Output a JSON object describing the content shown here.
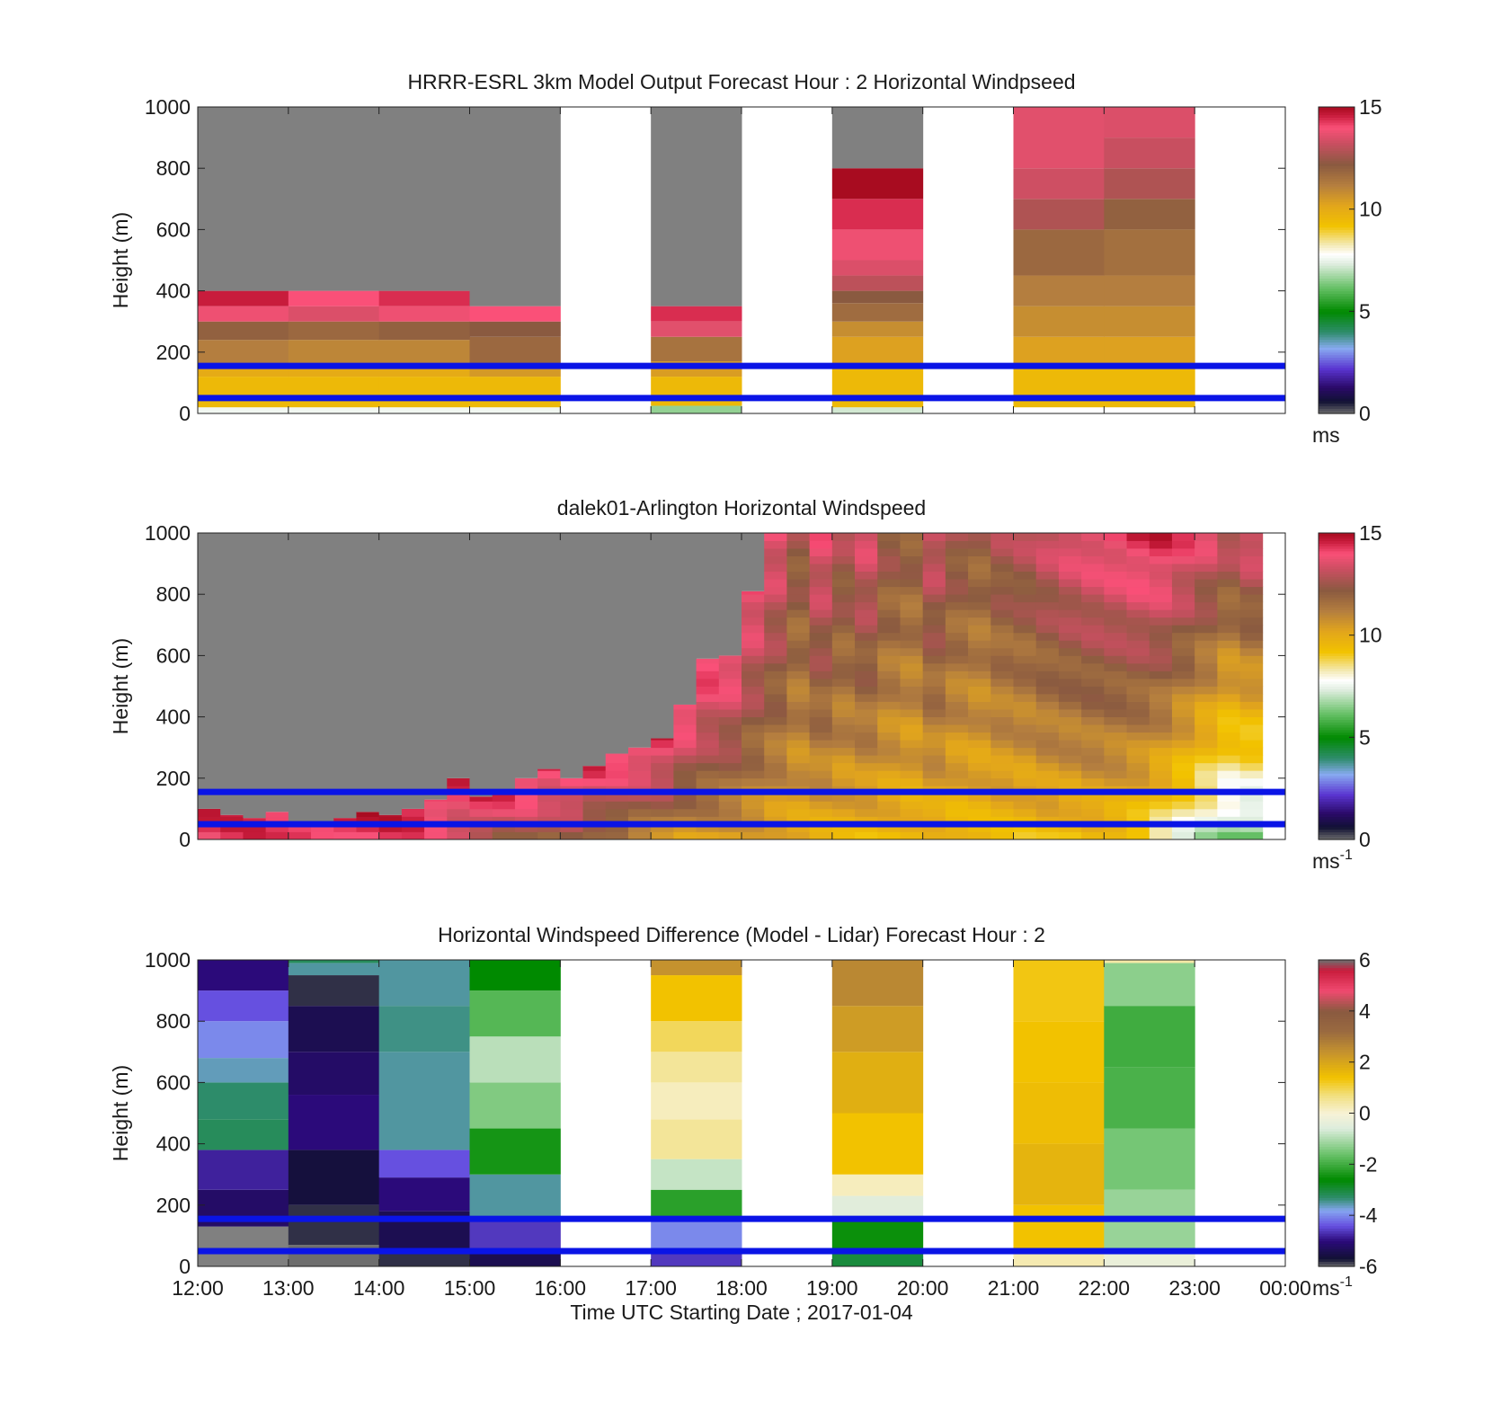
{
  "figure": {
    "xlabel": "Time UTC  Starting Date ; 2017-01-04",
    "x_ticks": [
      "12:00",
      "13:00",
      "14:00",
      "15:00",
      "16:00",
      "17:00",
      "18:00",
      "19:00",
      "20:00",
      "21:00",
      "22:00",
      "23:00",
      "00:00"
    ]
  },
  "chart_data": [
    {
      "type": "heatmap",
      "title": "HRRR-ESRL 3km Model Output   Forecast Hour : 2 Horizontal Windpseed",
      "ylabel": "Height (m)",
      "xlim": [
        "12:00",
        "00:00"
      ],
      "ylim": [
        0,
        1000
      ],
      "y_ticks": [
        "0",
        "200",
        "400",
        "600",
        "800",
        "1000"
      ],
      "colorbar": {
        "min": 0,
        "max": 15,
        "ticks": [
          "0",
          "5",
          "10",
          "15"
        ],
        "unit": "ms",
        "unit_sup": ""
      },
      "reference_lines_m": [
        50,
        155
      ],
      "columns": [
        {
          "hour_start": "12:00",
          "profile": [
            [
              0,
              20,
              7.6
            ],
            [
              20,
              50,
              9.5
            ],
            [
              50,
              120,
              9.5
            ],
            [
              120,
              160,
              10
            ],
            [
              160,
              240,
              11.2
            ],
            [
              240,
              300,
              12
            ],
            [
              300,
              350,
              13.8
            ],
            [
              350,
              400,
              14.6
            ],
            [
              400,
              1000,
              null
            ]
          ]
        },
        {
          "hour_start": "13:00",
          "profile": [
            [
              0,
              20,
              7.6
            ],
            [
              20,
              50,
              9.5
            ],
            [
              50,
              120,
              9.5
            ],
            [
              120,
              160,
              10
            ],
            [
              160,
              240,
              11
            ],
            [
              240,
              300,
              11.8
            ],
            [
              300,
              350,
              13.5
            ],
            [
              350,
              400,
              14
            ],
            [
              400,
              1000,
              null
            ]
          ]
        },
        {
          "hour_start": "14:00",
          "profile": [
            [
              0,
              20,
              7.6
            ],
            [
              20,
              50,
              9.5
            ],
            [
              50,
              120,
              9.5
            ],
            [
              120,
              160,
              10
            ],
            [
              160,
              240,
              11
            ],
            [
              240,
              300,
              12
            ],
            [
              300,
              350,
              13.8
            ],
            [
              350,
              400,
              14.4
            ],
            [
              400,
              1000,
              null
            ]
          ]
        },
        {
          "hour_start": "15:00",
          "profile": [
            [
              0,
              20,
              7.6
            ],
            [
              20,
              50,
              9.5
            ],
            [
              50,
              120,
              9.5
            ],
            [
              120,
              160,
              10.5
            ],
            [
              160,
              250,
              11.8
            ],
            [
              250,
              300,
              12.2
            ],
            [
              300,
              350,
              14
            ],
            [
              350,
              1000,
              null
            ]
          ]
        },
        {
          "hour_start": "17:00",
          "profile": [
            [
              0,
              25,
              6.6
            ],
            [
              25,
              50,
              9.5
            ],
            [
              50,
              120,
              9.5
            ],
            [
              120,
              170,
              10.4
            ],
            [
              170,
              250,
              11.5
            ],
            [
              250,
              300,
              13.6
            ],
            [
              300,
              350,
              14.4
            ],
            [
              350,
              1000,
              null
            ]
          ]
        },
        {
          "hour_start": "19:00",
          "profile": [
            [
              0,
              20,
              7.2
            ],
            [
              20,
              50,
              9.5
            ],
            [
              50,
              150,
              9.5
            ],
            [
              150,
              250,
              10.3
            ],
            [
              250,
              300,
              10.8
            ],
            [
              300,
              360,
              11.7
            ],
            [
              360,
              400,
              12.2
            ],
            [
              400,
              450,
              13
            ],
            [
              450,
              500,
              13.5
            ],
            [
              500,
              600,
              13.8
            ],
            [
              600,
              700,
              14.4
            ],
            [
              700,
              800,
              15
            ],
            [
              800,
              1000,
              null
            ]
          ]
        },
        {
          "hour_start": "21:00",
          "profile": [
            [
              0,
              20,
              7.8
            ],
            [
              20,
              50,
              9.5
            ],
            [
              50,
              150,
              9.5
            ],
            [
              150,
              250,
              10.3
            ],
            [
              250,
              350,
              10.8
            ],
            [
              350,
              450,
              11.2
            ],
            [
              450,
              600,
              11.8
            ],
            [
              600,
              700,
              12.8
            ],
            [
              700,
              800,
              13.3
            ],
            [
              800,
              1000,
              13.6
            ]
          ]
        },
        {
          "hour_start": "22:00",
          "profile": [
            [
              0,
              20,
              7.8
            ],
            [
              20,
              50,
              9.5
            ],
            [
              50,
              150,
              9.5
            ],
            [
              150,
              250,
              10.3
            ],
            [
              250,
              350,
              10.8
            ],
            [
              350,
              450,
              11.2
            ],
            [
              450,
              600,
              11.6
            ],
            [
              600,
              700,
              12
            ],
            [
              700,
              800,
              12.8
            ],
            [
              800,
              900,
              13.2
            ],
            [
              900,
              1000,
              13.5
            ]
          ]
        }
      ]
    },
    {
      "type": "heatmap",
      "title": "dalek01-Arlington  Horizontal Windspeed",
      "ylabel": "Height (m)",
      "xlim": [
        "12:00",
        "00:00"
      ],
      "ylim": [
        0,
        1000
      ],
      "y_ticks": [
        "0",
        "200",
        "400",
        "600",
        "800",
        "1000"
      ],
      "colorbar": {
        "min": 0,
        "max": 15,
        "ticks": [
          "0",
          "5",
          "10",
          "15"
        ],
        "unit": "ms",
        "unit_sup": "-1"
      },
      "reference_lines_m": [
        50,
        155
      ],
      "columns_per_hour": 4,
      "cell_height_m": 25,
      "top_height_m": [
        100,
        80,
        70,
        90,
        60,
        60,
        70,
        90,
        80,
        100,
        130,
        200,
        140,
        150,
        200,
        230,
        200,
        240,
        280,
        300,
        330,
        440,
        590,
        600,
        810,
        1000,
        1000,
        1000,
        1000,
        1000,
        1000,
        1000,
        1000,
        1000,
        1000,
        1000,
        1000,
        1000,
        1000,
        1000,
        1000,
        1000,
        1000,
        1000,
        1000,
        1000,
        1000
      ],
      "low_speed": [
        13.8,
        14,
        14.2,
        14.2,
        14.4,
        14.4,
        14.4,
        14.2,
        14.2,
        14,
        13.5,
        13.2,
        13,
        12.5,
        12.5,
        12,
        12,
        11.5,
        11.5,
        11,
        10.8,
        10.5,
        10.5,
        10.3,
        10.2,
        10,
        10,
        9.8,
        9.8,
        9.6,
        9.6,
        9.5,
        9.5,
        9.4,
        9.5,
        9.5,
        9.4,
        9.5,
        9.3,
        9.4,
        9.2,
        8.8,
        8.2,
        7.6,
        7,
        6.5,
        6.2
      ],
      "high_speed": [
        14.6,
        14.6,
        14.6,
        14.6,
        14.6,
        14.6,
        14.6,
        14.6,
        14.6,
        14.6,
        14.4,
        14.4,
        14.4,
        14.4,
        14.4,
        14.4,
        14.4,
        14.4,
        14.4,
        14.4,
        14.4,
        14.4,
        14.4,
        14.2,
        14,
        13.8,
        12.5,
        13.8,
        12.8,
        13.6,
        12.5,
        12.2,
        13.4,
        12.6,
        12.2,
        12.8,
        13,
        13.4,
        13.8,
        14,
        14.2,
        14.5,
        14.6,
        14.2,
        13.8,
        13.2,
        13.8
      ]
    },
    {
      "type": "heatmap",
      "title": "Horizontal Windspeed Difference (Model - Lidar) Forecast Hour : 2",
      "ylabel": "Height (m)",
      "xlim": [
        "12:00",
        "00:00"
      ],
      "ylim": [
        0,
        1000
      ],
      "y_ticks": [
        "0",
        "200",
        "400",
        "600",
        "800",
        "1000"
      ],
      "colorbar": {
        "min": -6,
        "max": 6,
        "ticks": [
          "-6",
          "-4",
          "-2",
          "0",
          "2",
          "4",
          "6"
        ],
        "unit": "ms",
        "unit_sup": "-1"
      },
      "reference_lines_m": [
        50,
        155
      ],
      "columns": [
        {
          "hour_start": "12:00",
          "profile": [
            [
              0,
              130,
              null
            ],
            [
              130,
              250,
              -5.2
            ],
            [
              250,
              380,
              -4.8
            ],
            [
              380,
              480,
              -3.2
            ],
            [
              480,
              600,
              -3.3
            ],
            [
              600,
              680,
              -3.6
            ],
            [
              680,
              800,
              -4
            ],
            [
              800,
              900,
              -4.4
            ],
            [
              900,
              1000,
              -5
            ]
          ]
        },
        {
          "hour_start": "13:00",
          "profile": [
            [
              0,
              70,
              -6
            ],
            [
              70,
              200,
              -5.8
            ],
            [
              200,
              380,
              -5.6
            ],
            [
              380,
              560,
              -5
            ],
            [
              560,
              700,
              -5.2
            ],
            [
              700,
              850,
              -5.4
            ],
            [
              850,
              950,
              -5.8
            ],
            [
              950,
              990,
              -3.5
            ],
            [
              990,
              1000,
              -3.2
            ]
          ]
        },
        {
          "hour_start": "14:00",
          "profile": [
            [
              0,
              60,
              -5.8
            ],
            [
              60,
              180,
              -5.4
            ],
            [
              180,
              290,
              -5
            ],
            [
              290,
              380,
              -4.4
            ],
            [
              380,
              700,
              -3.5
            ],
            [
              700,
              850,
              -3.4
            ],
            [
              850,
              1000,
              -3.5
            ]
          ]
        },
        {
          "hour_start": "15:00",
          "profile": [
            [
              0,
              50,
              -5.4
            ],
            [
              50,
              160,
              -4.6
            ],
            [
              160,
              300,
              -3.5
            ],
            [
              300,
              450,
              -2.4
            ],
            [
              450,
              600,
              -1.4
            ],
            [
              600,
              750,
              -0.9
            ],
            [
              750,
              900,
              -1.8
            ],
            [
              900,
              1000,
              -2.6
            ]
          ]
        },
        {
          "hour_start": "17:00",
          "profile": [
            [
              0,
              50,
              -4.6
            ],
            [
              50,
              150,
              -4
            ],
            [
              150,
              250,
              -2.2
            ],
            [
              250,
              350,
              -0.8
            ],
            [
              350,
              480,
              0.5
            ],
            [
              480,
              600,
              0.2
            ],
            [
              600,
              700,
              0.5
            ],
            [
              700,
              800,
              0.9
            ],
            [
              800,
              950,
              1.4
            ],
            [
              950,
              1000,
              2.4
            ]
          ]
        },
        {
          "hour_start": "19:00",
          "profile": [
            [
              0,
              50,
              -3
            ],
            [
              50,
              150,
              -2.5
            ],
            [
              150,
              230,
              -0.5
            ],
            [
              230,
              300,
              0.2
            ],
            [
              300,
              500,
              1.4
            ],
            [
              500,
              700,
              1.8
            ],
            [
              700,
              850,
              2.2
            ],
            [
              850,
              1000,
              2.6
            ]
          ]
        },
        {
          "hour_start": "21:00",
          "profile": [
            [
              0,
              50,
              0.3
            ],
            [
              50,
              200,
              1.4
            ],
            [
              200,
              400,
              1.7
            ],
            [
              400,
              600,
              1.5
            ],
            [
              600,
              800,
              1.4
            ],
            [
              800,
              1000,
              1.3
            ]
          ]
        },
        {
          "hour_start": "22:00",
          "profile": [
            [
              0,
              50,
              -0.3
            ],
            [
              50,
              250,
              -1.2
            ],
            [
              250,
              450,
              -1.5
            ],
            [
              450,
              650,
              -1.9
            ],
            [
              650,
              850,
              -2
            ],
            [
              850,
              990,
              -1.3
            ],
            [
              990,
              1000,
              0.4
            ]
          ]
        }
      ]
    }
  ]
}
